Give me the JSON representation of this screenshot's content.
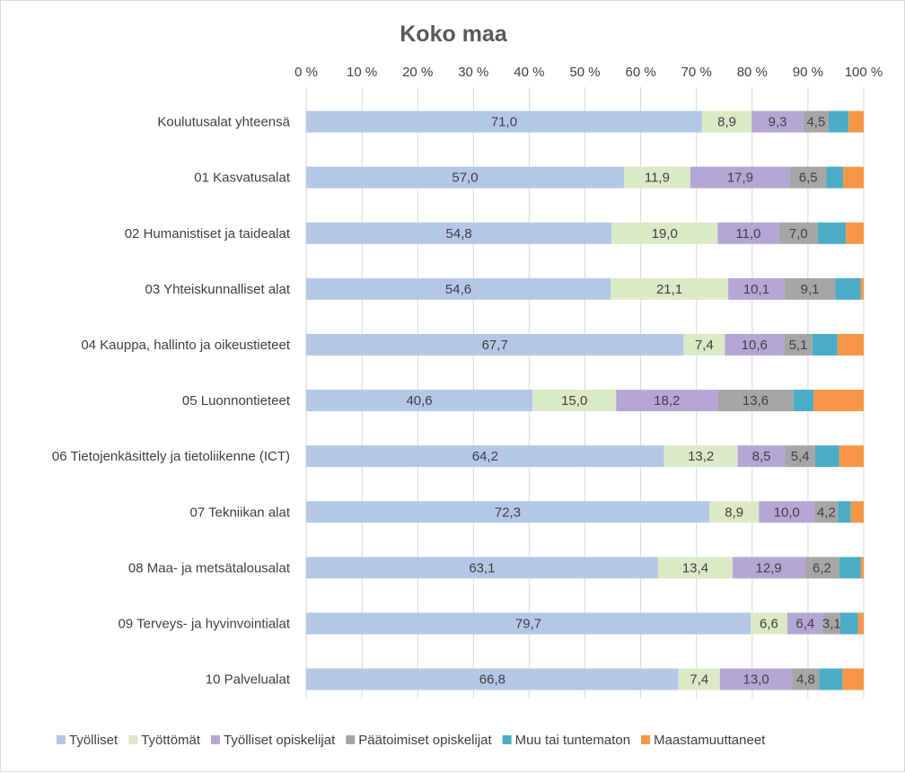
{
  "chart_data": {
    "type": "bar",
    "orientation": "horizontal",
    "stacked": "percent",
    "title": "Koko maa",
    "xlabel": "",
    "ylabel": "",
    "xlim": [
      0,
      100
    ],
    "ticks": [
      "0 %",
      "10 %",
      "20 %",
      "30 %",
      "40 %",
      "50 %",
      "60 %",
      "70 %",
      "80 %",
      "90 %",
      "100 %"
    ],
    "legend_position": "bottom",
    "categories": [
      "Koulutusalat yhteensä",
      "01 Kasvatusalat",
      "02 Humanistiset ja taidealat",
      "03 Yhteiskunnalliset alat",
      "04 Kauppa, hallinto ja oikeustieteet",
      "05 Luonnontieteet",
      "06 Tietojenkäsittely ja tietoliikenne (ICT)",
      "07 Tekniikan alat",
      "08 Maa- ja metsätalousalat",
      "09 Terveys- ja hyvinvointialat",
      "10 Palvelualat"
    ],
    "series": [
      {
        "name": "Työlliset",
        "color": "#b4c7e7",
        "show_labels": true,
        "values": [
          71.0,
          57.0,
          54.8,
          54.6,
          67.7,
          40.6,
          64.2,
          72.3,
          63.1,
          79.7,
          66.8
        ],
        "labels": [
          "71,0",
          "57,0",
          "54,8",
          "54,6",
          "67,7",
          "40,6",
          "64,2",
          "72,3",
          "63,1",
          "79,7",
          "66,8"
        ]
      },
      {
        "name": "Työttömät",
        "color": "#dbe9c7",
        "show_labels": true,
        "values": [
          8.9,
          11.9,
          19.0,
          21.1,
          7.4,
          15.0,
          13.2,
          8.9,
          13.4,
          6.6,
          7.4
        ],
        "labels": [
          "8,9",
          "11,9",
          "19,0",
          "21,1",
          "7,4",
          "15,0",
          "13,2",
          "8,9",
          "13,4",
          "6,6",
          "7,4"
        ]
      },
      {
        "name": "Työlliset opiskelijat",
        "color": "#b4a7d6",
        "show_labels": true,
        "values": [
          9.3,
          17.9,
          11.0,
          10.1,
          10.6,
          18.2,
          8.5,
          10.0,
          12.9,
          6.4,
          13.0
        ],
        "labels": [
          "9,3",
          "17,9",
          "11,0",
          "10,1",
          "10,6",
          "18,2",
          "8,5",
          "10,0",
          "12,9",
          "6,4",
          "13,0"
        ]
      },
      {
        "name": "Päätoimiset opiskelijat",
        "color": "#a6a6a6",
        "show_labels": true,
        "values": [
          4.5,
          6.5,
          7.0,
          9.1,
          5.1,
          13.6,
          5.4,
          4.2,
          6.2,
          3.1,
          4.8
        ],
        "labels": [
          "4,5",
          "6,5",
          "7,0",
          "9,1",
          "5,1",
          "13,6",
          "5,4",
          "4,2",
          "6,2",
          "3,1",
          "4,8"
        ]
      },
      {
        "name": "Muu tai tuntematon",
        "color": "#4bacc6",
        "show_labels": false,
        "values": [
          3.6,
          3.0,
          5.0,
          4.6,
          4.5,
          3.6,
          4.3,
          2.3,
          3.9,
          3.2,
          4.2
        ]
      },
      {
        "name": "Maastamuuttaneet",
        "color": "#f79646",
        "show_labels": false,
        "values": [
          2.7,
          3.7,
          3.2,
          0.5,
          4.7,
          9.0,
          4.4,
          2.3,
          0.5,
          1.0,
          3.8
        ]
      }
    ]
  }
}
